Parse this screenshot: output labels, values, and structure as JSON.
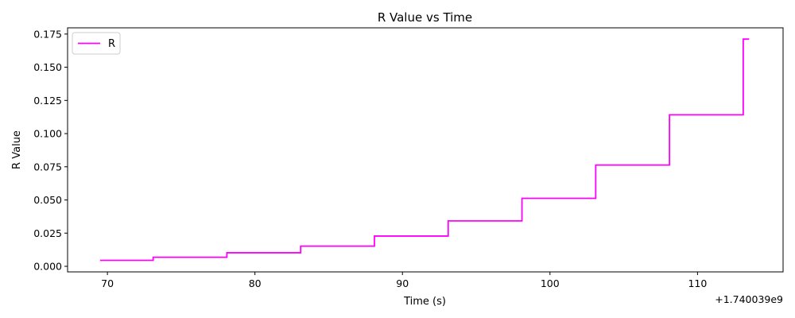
{
  "chart_data": {
    "type": "line",
    "drawstyle": "steps-post",
    "title": "R Value vs Time",
    "xlabel": "Time (s)",
    "ylabel": "R Value",
    "x_offset_label": "+1.740039e9",
    "xlim": [
      67.3,
      115.8
    ],
    "ylim": [
      -0.0042,
      0.1797
    ],
    "xticks": [
      70,
      80,
      90,
      100,
      110
    ],
    "xtick_labels": [
      "70",
      "80",
      "90",
      "100",
      "110"
    ],
    "yticks": [
      0.0,
      0.025,
      0.05,
      0.075,
      0.1,
      0.125,
      0.15,
      0.175
    ],
    "ytick_labels": [
      "0.000",
      "0.025",
      "0.050",
      "0.075",
      "0.100",
      "0.125",
      "0.150",
      "0.175"
    ],
    "grid": false,
    "legend_position": "top-left",
    "series": [
      {
        "name": "R",
        "color": "#ff00ff",
        "x": [
          69.5,
          73.1,
          78.1,
          83.1,
          88.1,
          93.1,
          98.1,
          103.1,
          108.1,
          113.1,
          113.5
        ],
        "y": [
          0.0045,
          0.0068,
          0.0102,
          0.0152,
          0.0228,
          0.0342,
          0.0512,
          0.0763,
          0.1142,
          0.1712,
          0.1712
        ]
      }
    ]
  }
}
